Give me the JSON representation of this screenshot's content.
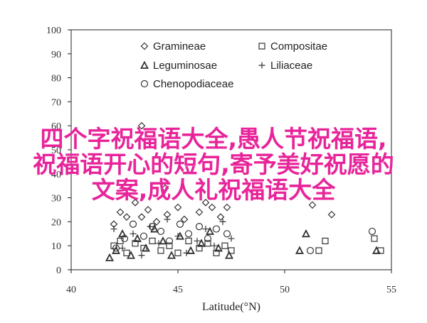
{
  "chart_data": {
    "type": "scatter",
    "title": "",
    "xlabel": "Latitude(°N)",
    "ylabel": "",
    "xlim": [
      40,
      55
    ],
    "ylim": [
      0,
      100
    ],
    "xticks": [
      40,
      45,
      50,
      55
    ],
    "yticks": [
      0,
      10,
      20,
      30,
      40,
      50,
      60,
      70,
      80,
      90,
      100
    ],
    "grid": "off",
    "legend_position": "top-center",
    "marker_color": "#333333",
    "series": [
      {
        "name": "Gramineae",
        "marker": "diamond",
        "x": [
          42.0,
          42.3,
          42.6,
          43.0,
          43.3,
          43.6,
          44.0,
          44.5,
          45.0,
          45.3,
          46.0,
          46.3,
          46.6,
          47.0,
          47.3,
          51.3,
          52.2,
          43.3,
          44.4
        ],
        "y": [
          19,
          24,
          22,
          28,
          22,
          25,
          20,
          23,
          26,
          21,
          24,
          28,
          26,
          22,
          26,
          27,
          23,
          60,
          34
        ]
      },
      {
        "name": "Compositae",
        "marker": "square",
        "x": [
          42.0,
          42.3,
          42.6,
          43.0,
          43.4,
          43.8,
          44.2,
          44.6,
          45.0,
          45.5,
          46.0,
          46.4,
          46.8,
          47.2,
          47.5,
          51.6,
          51.9,
          54.2,
          54.5
        ],
        "y": [
          10,
          12,
          7,
          11,
          9,
          12,
          8,
          10,
          7,
          12,
          9,
          11,
          7,
          10,
          8,
          8,
          12,
          13,
          8
        ]
      },
      {
        "name": "Leguminosae",
        "marker": "triangle",
        "x": [
          41.8,
          42.1,
          42.4,
          42.8,
          43.1,
          43.5,
          43.9,
          44.3,
          44.7,
          45.1,
          45.6,
          46.1,
          46.5,
          46.9,
          47.4,
          50.7,
          51.0,
          54.3
        ],
        "y": [
          5,
          8,
          15,
          6,
          13,
          9,
          17,
          12,
          6,
          14,
          8,
          11,
          16,
          9,
          6,
          8,
          15,
          8
        ]
      },
      {
        "name": "Liliaceae",
        "marker": "plus",
        "x": [
          42.0,
          42.4,
          42.9,
          43.3,
          43.7,
          44.1,
          44.5,
          45.0,
          45.4,
          45.9,
          46.3,
          46.7,
          47.1,
          47.5
        ],
        "y": [
          17,
          9,
          15,
          6,
          18,
          11,
          21,
          14,
          7,
          12,
          17,
          10,
          20,
          13
        ]
      },
      {
        "name": "Chenopodiaceae",
        "marker": "circle",
        "x": [
          42.1,
          42.5,
          42.9,
          43.4,
          43.8,
          44.2,
          44.6,
          45.1,
          45.5,
          46.0,
          46.4,
          46.8,
          47.3,
          51.2,
          54.1
        ],
        "y": [
          9,
          13,
          19,
          14,
          18,
          16,
          12,
          19,
          15,
          18,
          13,
          17,
          15,
          8,
          16
        ]
      }
    ]
  },
  "overlay": {
    "lines": [
      "四个字祝福语大全,愚人节祝福语,",
      "祝福语开心的短句,寄予美好祝愿的",
      "文案,成人礼祝福语大全"
    ],
    "color": "#e8249a"
  }
}
